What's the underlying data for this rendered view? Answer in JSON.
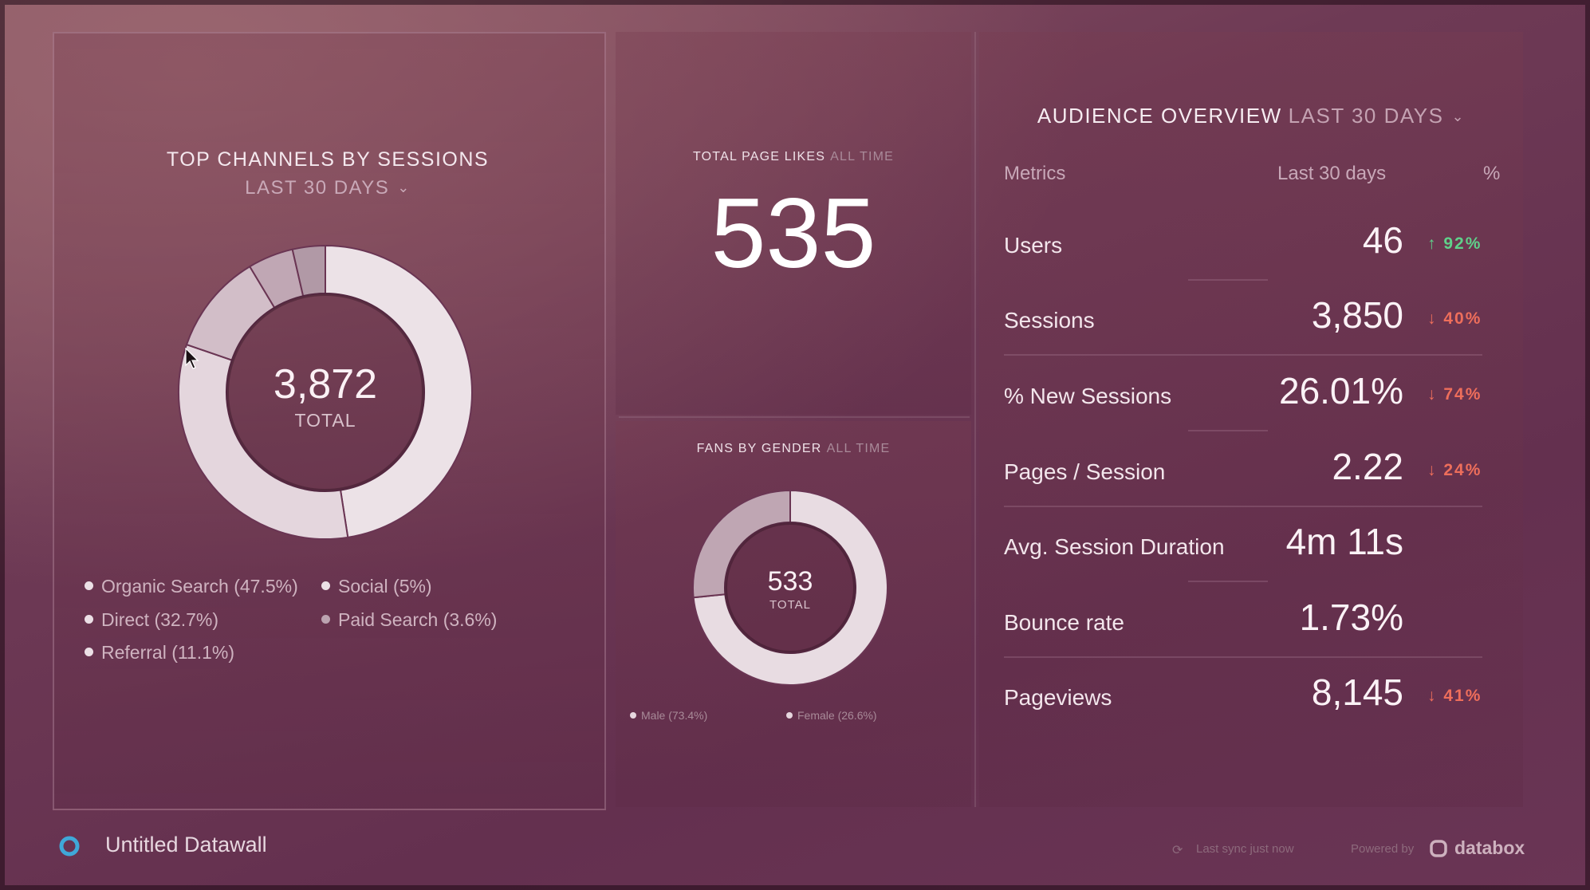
{
  "app": {
    "title": "Untitled Datawall"
  },
  "top_channels": {
    "title": "TOP CHANNELS BY SESSIONS",
    "range": "LAST 30 DAYS",
    "total": "3,872",
    "total_label": "TOTAL",
    "segments": [
      {
        "label": "Organic Search (47.5%)",
        "pct": 47.5,
        "color": "#ece2e7"
      },
      {
        "label": "Direct (32.7%)",
        "pct": 32.7,
        "color": "#e4d6dd"
      },
      {
        "label": "Referral (11.1%)",
        "pct": 11.1,
        "color": "#d2bec8"
      },
      {
        "label": "Social (5%)",
        "pct": 5.0,
        "color": "#c0a7b4"
      },
      {
        "label": "Paid Search (3.6%)",
        "pct": 3.6,
        "color": "#b199a6"
      }
    ]
  },
  "page_likes": {
    "title": "TOTAL PAGE LIKES",
    "subtitle": "ALL TIME",
    "value": "535"
  },
  "fans_gender": {
    "title": "FANS BY GENDER",
    "subtitle": "ALL TIME",
    "total": "533",
    "total_label": "TOTAL",
    "segments": [
      {
        "label": "Male (73.4%)",
        "pct": 73.4,
        "color": "#e8dce2"
      },
      {
        "label": "Female (26.6%)",
        "pct": 26.6,
        "color": "#bfa6b3"
      }
    ]
  },
  "audience": {
    "title": "AUDIENCE OVERVIEW",
    "range": "LAST 30 DAYS",
    "headers": {
      "metric": "Metrics",
      "period": "Last 30 days",
      "pct": "%"
    },
    "rows": [
      {
        "label": "Users",
        "value": "46",
        "delta": "↑ 92%",
        "dir": "up"
      },
      {
        "label": "Sessions",
        "value": "3,850",
        "delta": "↓ 40%",
        "dir": "down"
      },
      {
        "label": "% New Sessions",
        "value": "26.01%",
        "delta": "↓ 74%",
        "dir": "down"
      },
      {
        "label": "Pages / Session",
        "value": "2.22",
        "delta": "↓ 24%",
        "dir": "down"
      },
      {
        "label": "Avg. Session Duration",
        "value": "4m 11s",
        "delta": "",
        "dir": ""
      },
      {
        "label": "Bounce rate",
        "value": "1.73%",
        "delta": "",
        "dir": ""
      },
      {
        "label": "Pageviews",
        "value": "8,145",
        "delta": "↓ 41%",
        "dir": "down"
      }
    ]
  },
  "footer": {
    "sync": "Last sync just now",
    "powered": "Powered by",
    "brand": "databox"
  },
  "colors": {
    "up": "#5fd18a",
    "down": "#ee6e5b"
  }
}
